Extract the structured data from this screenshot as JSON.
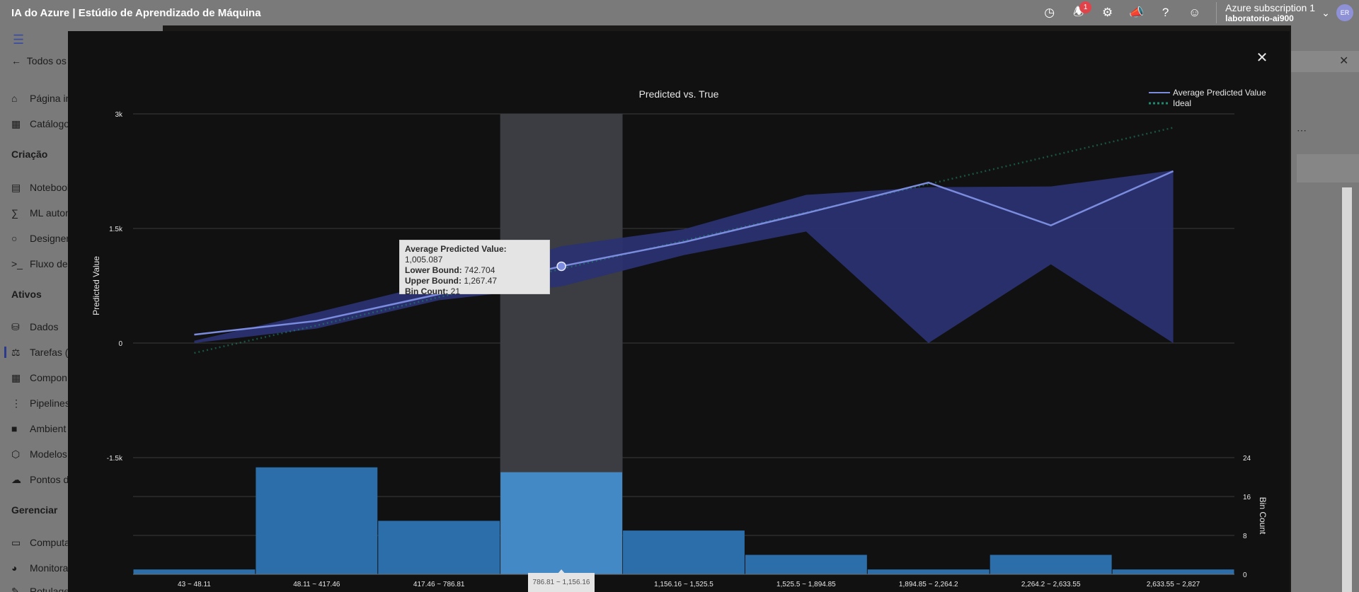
{
  "app": {
    "title": "IA do Azure | Estúdio de Aprendizado de Máquina"
  },
  "topbar": {
    "notification_count": "1",
    "subscription": "Azure subscription 1",
    "workspace": "laboratorio-ai900",
    "avatar_initials": "ER"
  },
  "sidebar": {
    "back_label": "Todos os",
    "items_top": [
      {
        "label": "Página in",
        "icon": "home-icon"
      },
      {
        "label": "Catálogo",
        "icon": "catalog-icon"
      }
    ],
    "section_criacao": "Criação",
    "items_criacao": [
      {
        "label": "Notebooks",
        "icon": "notebook-icon"
      },
      {
        "label": "ML autom",
        "icon": "automl-icon"
      },
      {
        "label": "Designer",
        "icon": "designer-icon"
      },
      {
        "label": "Fluxo de",
        "icon": "promptflow-icon"
      }
    ],
    "section_ativos": "Ativos",
    "items_ativos": [
      {
        "label": "Dados",
        "icon": "data-icon"
      },
      {
        "label": "Tarefas (",
        "icon": "jobs-icon"
      },
      {
        "label": "Compon",
        "icon": "components-icon"
      },
      {
        "label": "Pipelines",
        "icon": "pipelines-icon"
      },
      {
        "label": "Ambient",
        "icon": "environment-icon"
      },
      {
        "label": "Modelos",
        "icon": "models-icon"
      },
      {
        "label": "Pontos d",
        "icon": "endpoints-icon"
      }
    ],
    "section_gerenciar": "Gerenciar",
    "items_gerenciar": [
      {
        "label": "Computa",
        "icon": "compute-icon"
      },
      {
        "label": "Monitora",
        "icon": "monitor-icon"
      },
      {
        "label": "Rotulage",
        "icon": "labeling-icon"
      }
    ]
  },
  "chart_data": {
    "type": "line",
    "title": "Predicted vs. True",
    "ylabel": "Predicted Value",
    "y2label": "Bin Count",
    "ylim": [
      -1500,
      3000
    ],
    "y_ticks": [
      "3k",
      "1.5k",
      "0",
      "-1.5k"
    ],
    "y2_ticks": [
      "24",
      "16",
      "8",
      "0"
    ],
    "y2lim": [
      0,
      24
    ],
    "categories": [
      "43 ~ 48.11",
      "48.11 ~ 417.46",
      "417.46 ~ 786.81",
      "786.81 ~ 1,156.16",
      "1,156.16 ~ 1,525.5",
      "1,525.5 ~ 1,894.85",
      "1,894.85 ~ 2,264.2",
      "2,264.2 ~ 2,633.55",
      "2,633.55 ~ 2,827"
    ],
    "series": [
      {
        "name": "Average Predicted Value",
        "values": [
          110,
          290,
          640,
          1005,
          1320,
          1700,
          2100,
          1540,
          2250
        ],
        "color": "#7b8cde"
      },
      {
        "name": "Ideal",
        "values": [
          -130,
          230,
          600,
          970,
          1340,
          1710,
          2080,
          2450,
          2820
        ],
        "color": "#1f8a70",
        "style": "dotted"
      }
    ],
    "lower_bound": [
      0,
      190,
      560,
      742,
      1150,
      1460,
      0,
      1030,
      0
    ],
    "upper_bound": [
      30,
      400,
      790,
      1267,
      1490,
      1940,
      2040,
      2050,
      2260
    ],
    "bin_counts": [
      1,
      22,
      11,
      21,
      9,
      4,
      1,
      4,
      1
    ],
    "highlight_index": 3,
    "legend_position": "top-right",
    "grid": true
  },
  "tooltip": {
    "avg_label": "Average Predicted Value:",
    "avg_value": "1,005.087",
    "low_label": "Lower Bound:",
    "low_value": "742.704",
    "up_label": "Upper Bound:",
    "up_value": "1,267.47",
    "bin_label": "Bin Count:",
    "bin_value": "21"
  },
  "x_hint": "786.81 ~ 1,156.16"
}
